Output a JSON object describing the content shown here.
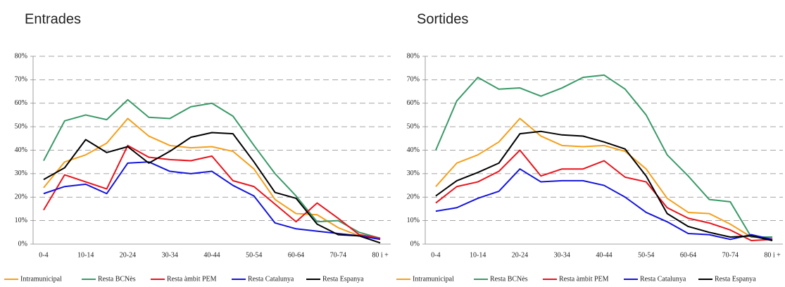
{
  "chart_data": [
    {
      "type": "line",
      "title": "Entrades",
      "categories": [
        "0-4",
        null,
        "10-14",
        null,
        "20-24",
        null,
        "30-34",
        null,
        "40-44",
        null,
        "50-54",
        null,
        "60-64",
        null,
        "70-74",
        null,
        "80 i +"
      ],
      "ylim": [
        0,
        80
      ],
      "yticks": [
        {
          "value": 0,
          "label": "0%"
        },
        {
          "value": 10,
          "label": "10%"
        },
        {
          "value": 20,
          "label": "20%"
        },
        {
          "value": 30,
          "label": "30%"
        },
        {
          "value": 40,
          "label": "40%"
        },
        {
          "value": 50,
          "label": "50%"
        },
        {
          "value": 60,
          "label": "60%"
        },
        {
          "value": 70,
          "label": "70%"
        },
        {
          "value": 80,
          "label": "80%"
        }
      ],
      "grid": true,
      "legend": "bottom",
      "series": [
        {
          "name": "Intramunicipal",
          "color": "#f5a01a",
          "values": [
            24,
            35,
            38,
            43,
            53.5,
            46,
            42,
            41,
            41.5,
            39.5,
            32,
            19,
            13,
            12.5,
            7,
            3.5,
            2.5
          ]
        },
        {
          "name": "Resta BCNès",
          "color": "#3a9a68",
          "values": [
            35.5,
            52.5,
            55,
            53,
            61.5,
            54,
            53.5,
            58.5,
            60,
            54.5,
            42,
            30,
            20.5,
            9.5,
            10,
            5,
            2.5
          ]
        },
        {
          "name": "Resta àmbit PEM",
          "color": "#e8141c",
          "values": [
            14.5,
            29.5,
            26.5,
            23.5,
            42,
            37,
            36,
            35.5,
            37.5,
            27,
            24.5,
            17,
            9.5,
            17.5,
            11,
            4,
            2.5
          ]
        },
        {
          "name": "Resta Catalunya",
          "color": "#1414dc",
          "values": [
            21.5,
            24.5,
            25.5,
            21.5,
            34.5,
            35,
            31,
            30,
            31,
            25,
            20.5,
            9,
            6.5,
            5.5,
            4.5,
            3.5,
            2
          ]
        },
        {
          "name": "Resta Espanya",
          "color": "#000000",
          "values": [
            27.5,
            32.5,
            44.5,
            39,
            41.5,
            34.5,
            39.5,
            45.5,
            47.5,
            47,
            35,
            22,
            19.5,
            8.5,
            4,
            3.5,
            0.5
          ]
        }
      ]
    },
    {
      "type": "line",
      "title": "Sortides",
      "categories": [
        "0-4",
        null,
        "10-14",
        null,
        "20-24",
        null,
        "30-34",
        null,
        "40-44",
        null,
        "50-54",
        null,
        "60-64",
        null,
        "70-74",
        null,
        "80 i +"
      ],
      "ylim": [
        0,
        80
      ],
      "yticks": [
        {
          "value": 0,
          "label": "0%"
        },
        {
          "value": 10,
          "label": "10%"
        },
        {
          "value": 20,
          "label": "20%"
        },
        {
          "value": 30,
          "label": "30%"
        },
        {
          "value": 40,
          "label": "40%"
        },
        {
          "value": 50,
          "label": "50%"
        },
        {
          "value": 60,
          "label": "60%"
        },
        {
          "value": 70,
          "label": "70%"
        },
        {
          "value": 80,
          "label": "80%"
        }
      ],
      "grid": true,
      "legend": "bottom",
      "series": [
        {
          "name": "Intramunicipal",
          "color": "#f5a01a",
          "values": [
            24.5,
            34.5,
            38,
            43.5,
            53.5,
            46,
            42,
            41.5,
            42,
            39.5,
            32,
            19.5,
            13.5,
            13,
            8.5,
            3,
            2.5
          ]
        },
        {
          "name": "Resta BCNès",
          "color": "#3a9a68",
          "values": [
            40,
            61,
            71,
            66,
            66.5,
            63,
            66.5,
            71,
            72,
            66,
            55,
            38,
            29,
            19,
            18,
            3,
            3
          ]
        },
        {
          "name": "Resta àmbit PEM",
          "color": "#e8141c",
          "values": [
            17.5,
            24.5,
            26.5,
            31,
            40,
            29,
            32,
            32,
            35.5,
            28.5,
            26.5,
            15.5,
            11,
            9,
            6,
            1.5,
            2
          ]
        },
        {
          "name": "Resta Catalunya",
          "color": "#1414dc",
          "values": [
            14,
            15.5,
            19.5,
            22.5,
            32,
            26.5,
            27,
            27,
            25,
            20,
            13.5,
            9.5,
            4.5,
            4,
            2,
            4,
            2
          ]
        },
        {
          "name": "Resta Espanya",
          "color": "#000000",
          "values": [
            20.5,
            27,
            30.5,
            34.5,
            47,
            48,
            46.5,
            46,
            43.5,
            40.5,
            29,
            13,
            7.5,
            5,
            3,
            3.5,
            1.5
          ]
        }
      ]
    }
  ]
}
